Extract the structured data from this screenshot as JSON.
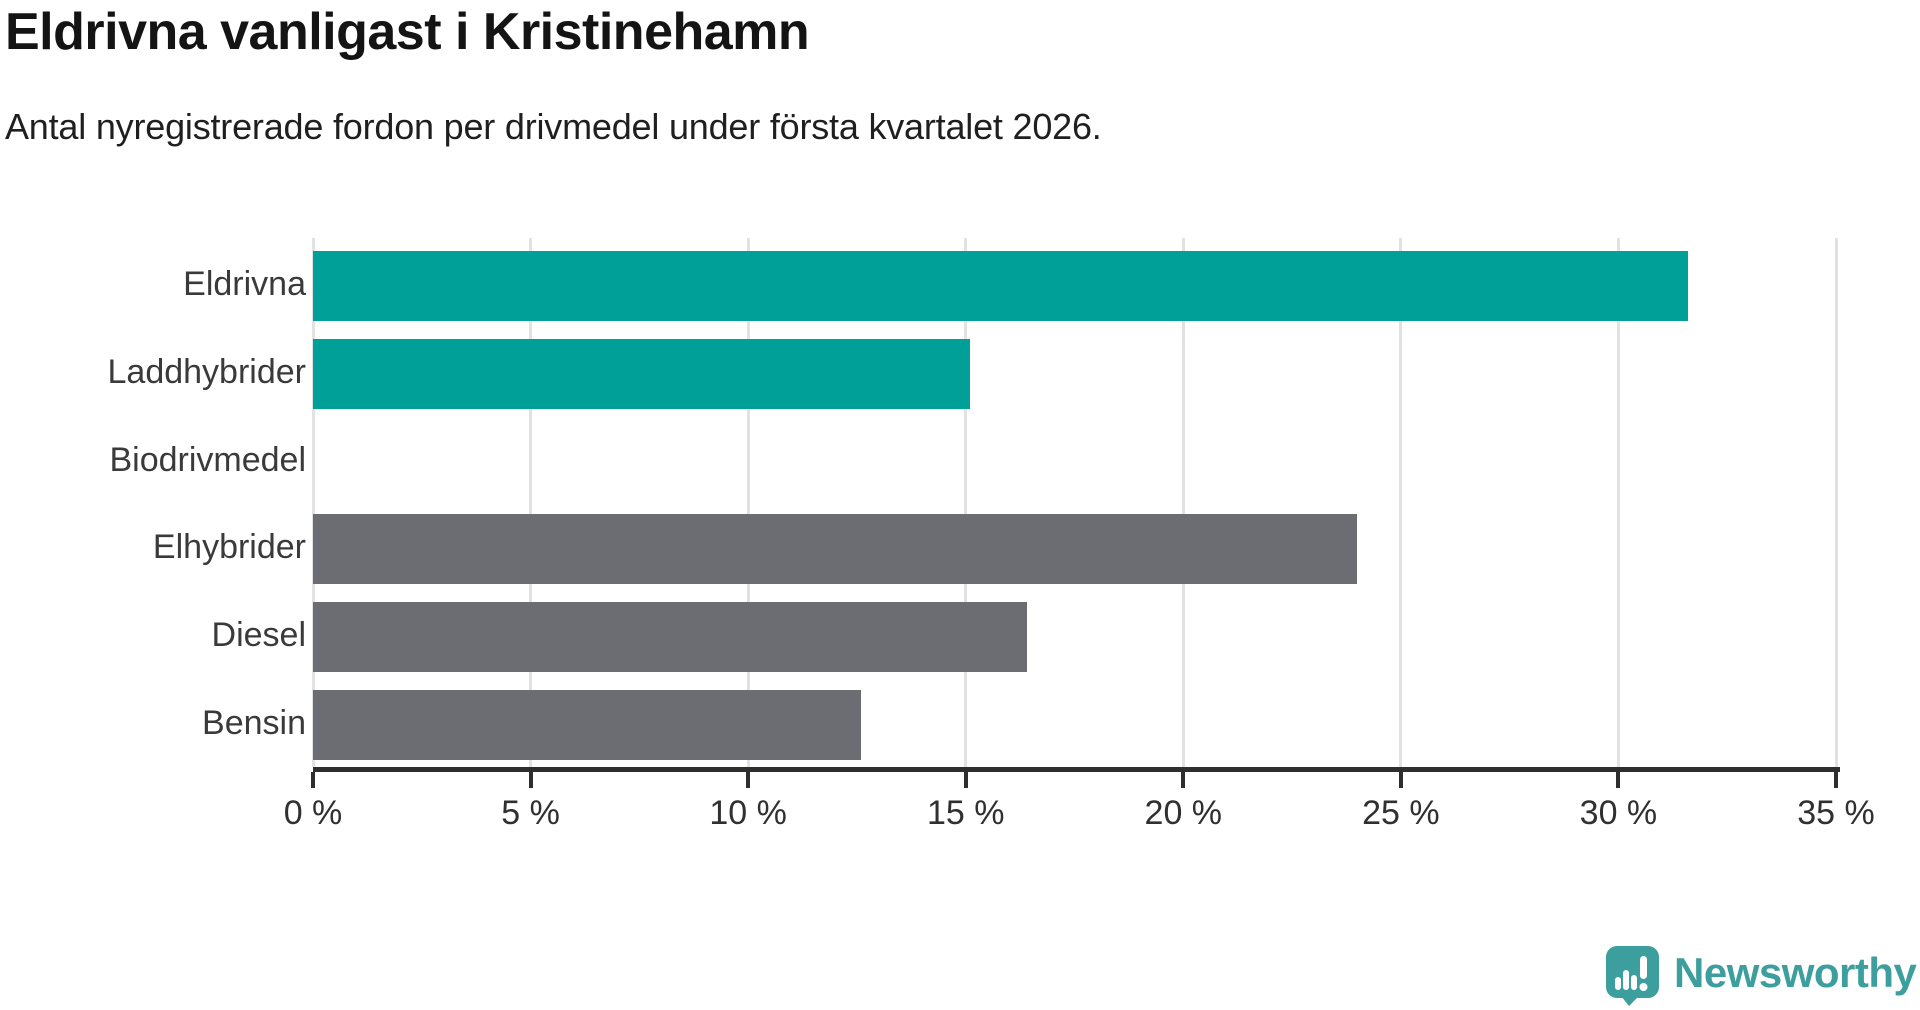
{
  "header": {
    "title": "Eldrivna vanligast i Kristinehamn",
    "subtitle": "Antal nyregistrerade fordon per drivmedel under första kvartalet 2026."
  },
  "chart_data": {
    "type": "bar",
    "orientation": "horizontal",
    "title": "Eldrivna vanligast i Kristinehamn",
    "subtitle": "Antal nyregistrerade fordon per drivmedel under första kvartalet 2026.",
    "categories": [
      "Eldrivna",
      "Laddhybrider",
      "Biodrivmedel",
      "Elhybrider",
      "Diesel",
      "Bensin"
    ],
    "values": [
      31.6,
      15.1,
      0,
      24.0,
      16.4,
      12.6
    ],
    "unit": "%",
    "xlim": [
      0,
      35
    ],
    "x_ticks": [
      0,
      5,
      10,
      15,
      20,
      25,
      30,
      35
    ],
    "x_tick_labels": [
      "0 %",
      "5 %",
      "10 %",
      "15 %",
      "20 %",
      "25 %",
      "30 %",
      "35 %"
    ],
    "bar_colors": [
      "#00a099",
      "#00a099",
      "#00a099",
      "#6c6d73",
      "#6c6d73",
      "#6c6d73"
    ],
    "grid": "vertical-only",
    "legend": "none"
  },
  "colors": {
    "highlight_teal": "#00a099",
    "neutral_gray": "#6c6d73",
    "gridline": "#e2e2e2",
    "axis": "#2e2e2e",
    "logo_teal": "#3d9e9e"
  },
  "footer": {
    "brand": "Newsworthy"
  }
}
